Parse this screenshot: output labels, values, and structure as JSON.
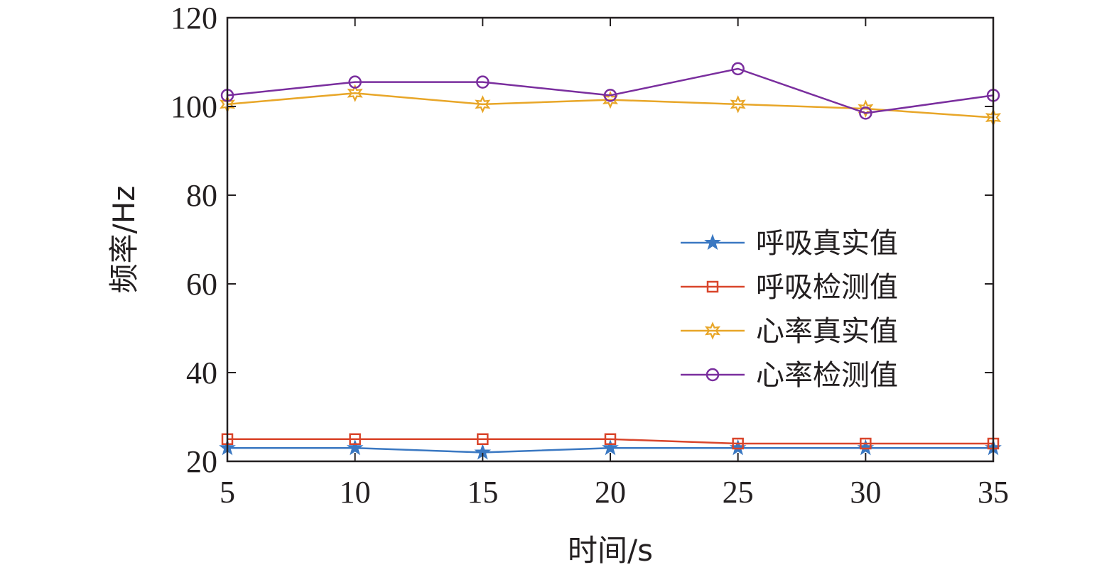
{
  "chart_data": {
    "type": "line",
    "xlabel": "时间/s",
    "ylabel": "频率/Hz",
    "xlim": [
      5,
      35
    ],
    "ylim": [
      20,
      120
    ],
    "xticks": [
      5,
      10,
      15,
      20,
      25,
      30,
      35
    ],
    "yticks": [
      20,
      40,
      60,
      80,
      100,
      120
    ],
    "grid": false,
    "legend_position": "center-right",
    "x": [
      5,
      10,
      15,
      20,
      25,
      30,
      35
    ],
    "series": [
      {
        "name": "呼吸真实值",
        "color": "#3a78c2",
        "marker": "star",
        "values": [
          23,
          23,
          22,
          23,
          23,
          23,
          23
        ]
      },
      {
        "name": "呼吸检测值",
        "color": "#d9452b",
        "marker": "square",
        "values": [
          25,
          25,
          25,
          25,
          24,
          24,
          24
        ]
      },
      {
        "name": "心率真实值",
        "color": "#e8a628",
        "marker": "hexagram",
        "values": [
          100.5,
          103,
          100.5,
          101.5,
          100.5,
          99.5,
          97.5
        ]
      },
      {
        "name": "心率检测值",
        "color": "#7a2e9e",
        "marker": "circle",
        "values": [
          102.5,
          105.5,
          105.5,
          102.5,
          108.5,
          98.5,
          102.5
        ]
      }
    ]
  }
}
